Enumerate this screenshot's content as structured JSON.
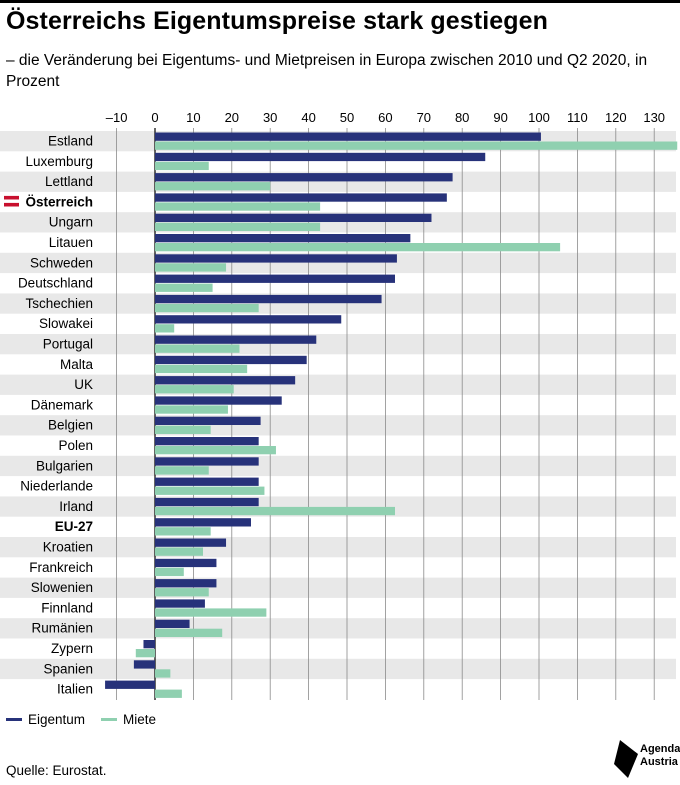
{
  "header": {
    "title": "Österreichs Eigentumspreise stark gestiegen",
    "subtitle": "– die Veränderung bei Eigentums- und Mietpreisen in Europa zwischen 2010 und Q2 2020, in Prozent"
  },
  "footer": {
    "source": "Quelle: Eurostat.",
    "logo_line1": "Agenda",
    "logo_line2": "Austria"
  },
  "colors": {
    "eigentum": "#27327a",
    "miete": "#8fd0b0",
    "stripe": "#e8e8e8",
    "highlight_flag_red": "#c8102e"
  },
  "chart_data": {
    "type": "bar",
    "orientation": "horizontal",
    "categories": [
      "Estland",
      "Luxemburg",
      "Lettland",
      "Österreich",
      "Ungarn",
      "Litauen",
      "Schweden",
      "Deutschland",
      "Tschechien",
      "Slowakei",
      "Portugal",
      "Malta",
      "UK",
      "Dänemark",
      "Belgien",
      "Polen",
      "Bulgarien",
      "Niederlande",
      "Irland",
      "EU-27",
      "Kroatien",
      "Frankreich",
      "Slowenien",
      "Finnland",
      "Rumänien",
      "Zypern",
      "Spanien",
      "Italien"
    ],
    "bold_categories": [
      "Österreich",
      "EU-27"
    ],
    "flag_category": "Österreich",
    "series": [
      {
        "name": "Eigentum",
        "values": [
          100.5,
          86,
          77.5,
          76,
          72,
          66.5,
          63,
          62.5,
          59,
          48.5,
          42,
          39.5,
          36.5,
          33,
          27.5,
          27,
          27,
          27,
          27,
          25,
          18.5,
          16,
          16,
          13,
          9,
          -3,
          -5.5,
          -13
        ]
      },
      {
        "name": "Miete",
        "values": [
          136,
          14,
          30,
          43,
          43,
          105.5,
          18.5,
          15,
          27,
          5,
          22,
          24,
          20.5,
          19,
          14.5,
          31.5,
          14,
          28.5,
          62.5,
          14.5,
          12.5,
          7.5,
          14,
          29,
          17.5,
          -5,
          4,
          7
        ]
      }
    ],
    "xlim": [
      -10,
      135
    ],
    "xticks": [
      -10,
      0,
      10,
      20,
      30,
      40,
      50,
      60,
      70,
      80,
      90,
      100,
      110,
      120,
      130
    ],
    "xtick_labels": [
      "–10",
      "0",
      "10",
      "20",
      "30",
      "40",
      "50",
      "60",
      "70",
      "80",
      "90",
      "100",
      "110",
      "120",
      "130"
    ],
    "grid": true,
    "legend_position": "bottom-left"
  }
}
